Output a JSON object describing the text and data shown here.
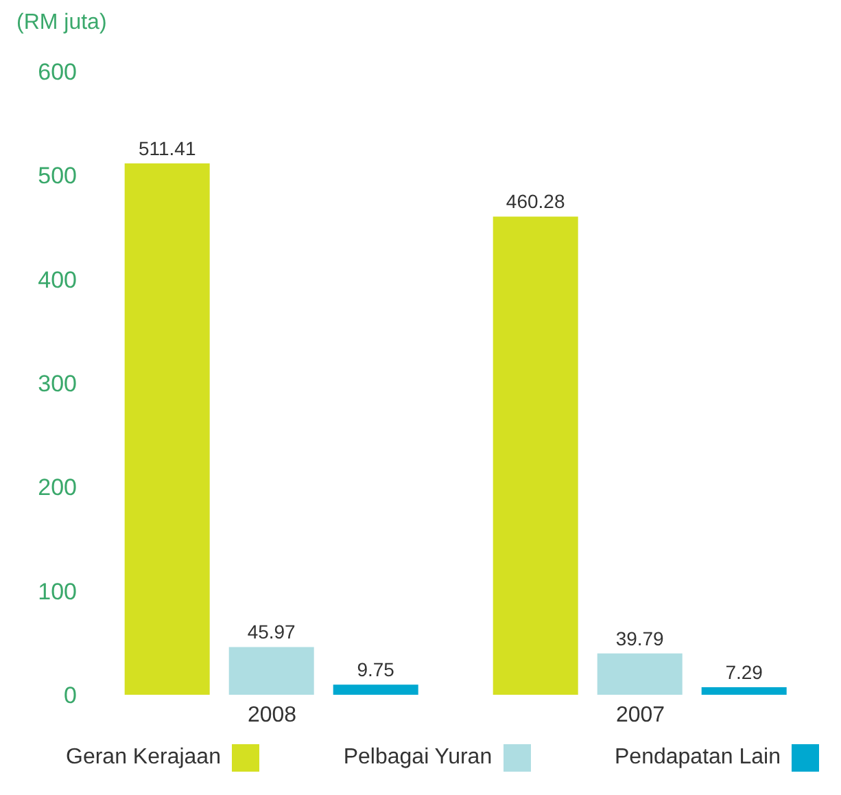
{
  "chart_data": {
    "type": "bar",
    "ylabel": "(RM juta)",
    "categories": [
      "2008",
      "2007"
    ],
    "series": [
      {
        "name": "Geran Kerajaan",
        "color": "#d4e022",
        "values": [
          511.41,
          460.28
        ]
      },
      {
        "name": "Pelbagai Yuran",
        "color": "#aedde2",
        "values": [
          45.97,
          39.79
        ]
      },
      {
        "name": "Pendapatan Lain",
        "color": "#00a8d0",
        "values": [
          9.75,
          7.29
        ]
      }
    ],
    "ylim": [
      0,
      600
    ],
    "yticks": [
      0,
      100,
      200,
      300,
      400,
      500,
      600
    ],
    "grid": false,
    "legend": "bottom",
    "data_labels": true
  }
}
